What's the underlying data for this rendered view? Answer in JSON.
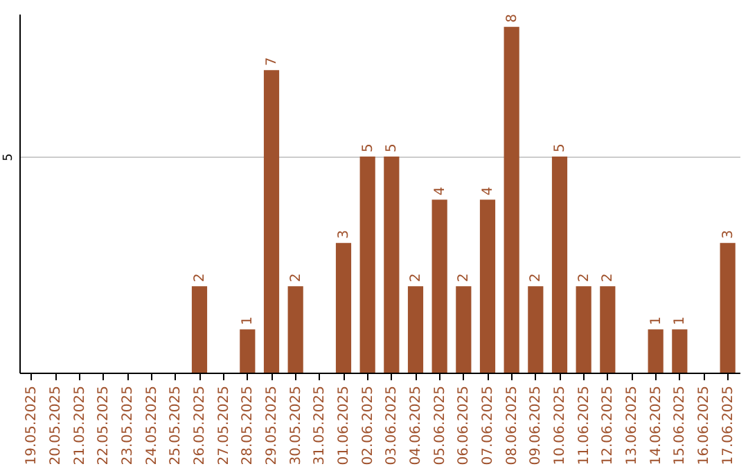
{
  "chart_data": {
    "type": "bar",
    "categories": [
      "19.05.2025",
      "20.05.2025",
      "21.05.2025",
      "22.05.2025",
      "23.05.2025",
      "24.05.2025",
      "25.05.2025",
      "26.05.2025",
      "27.05.2025",
      "28.05.2025",
      "29.05.2025",
      "30.05.2025",
      "31.05.2025",
      "01.06.2025",
      "02.06.2025",
      "03.06.2025",
      "04.06.2025",
      "05.06.2025",
      "06.06.2025",
      "07.06.2025",
      "08.06.2025",
      "09.06.2025",
      "10.06.2025",
      "11.06.2025",
      "12.06.2025",
      "13.06.2025",
      "14.06.2025",
      "15.06.2025",
      "16.06.2025",
      "17.06.2025"
    ],
    "values": [
      0,
      0,
      0,
      0,
      0,
      0,
      0,
      2,
      0,
      1,
      7,
      2,
      0,
      3,
      5,
      5,
      2,
      4,
      2,
      4,
      8,
      2,
      5,
      2,
      2,
      0,
      1,
      1,
      0,
      3
    ],
    "value_labels": [
      null,
      null,
      null,
      null,
      null,
      null,
      null,
      "2",
      null,
      "1",
      "7",
      "2",
      null,
      "3",
      "5",
      "5",
      "2",
      "4",
      "2",
      "4",
      "8",
      "2",
      "5",
      "2",
      "2",
      null,
      "1",
      "1",
      null,
      "3"
    ],
    "color": "#a0522d",
    "ylim": [
      0,
      8.3
    ],
    "yticks": [
      5
    ],
    "grid": "y"
  }
}
